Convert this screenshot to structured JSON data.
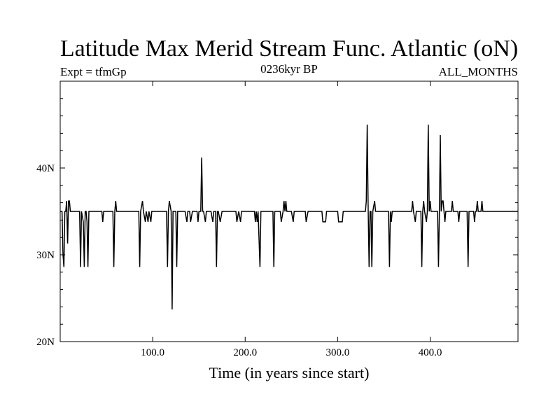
{
  "chart_data": {
    "type": "line",
    "title": "Latitude Max Merid Stream Func. Atlantic (oN)",
    "left_string": "Expt = tfmGp",
    "center_string": "0236kyr BP",
    "right_string": "ALL_MONTHS",
    "xlabel": "Time (in years since start)",
    "ylabel": "",
    "xlim": [
      0,
      495
    ],
    "ylim": [
      20,
      50
    ],
    "x_ticks": [
      {
        "value": 100,
        "label": "100.0"
      },
      {
        "value": 200,
        "label": "200.0"
      },
      {
        "value": 300,
        "label": "300.0"
      },
      {
        "value": 400,
        "label": "400.0"
      }
    ],
    "y_ticks": [
      {
        "value": 20,
        "label": "20N"
      },
      {
        "value": 30,
        "label": "30N"
      },
      {
        "value": 40,
        "label": "40N"
      }
    ],
    "baseline": 35,
    "series": [
      {
        "color": "#000000",
        "points": [
          [
            0,
            35
          ],
          [
            2,
            35
          ],
          [
            3,
            30
          ],
          [
            4,
            28.6
          ],
          [
            5,
            35
          ],
          [
            6,
            35
          ],
          [
            7,
            36.2
          ],
          [
            8,
            31.3
          ],
          [
            9,
            36.2
          ],
          [
            10,
            36.2
          ],
          [
            11,
            35
          ],
          [
            20,
            35
          ],
          [
            21,
            35
          ],
          [
            22,
            28.6
          ],
          [
            23,
            35
          ],
          [
            25,
            33.8
          ],
          [
            26,
            28.6
          ],
          [
            27,
            35
          ],
          [
            28,
            35
          ],
          [
            29,
            33.8
          ],
          [
            30,
            28.6
          ],
          [
            31,
            35
          ],
          [
            45,
            35
          ],
          [
            46,
            33.8
          ],
          [
            47,
            35
          ],
          [
            57,
            35
          ],
          [
            58,
            28.6
          ],
          [
            59,
            35
          ],
          [
            60,
            36.2
          ],
          [
            61,
            35
          ],
          [
            85,
            35
          ],
          [
            86,
            28.6
          ],
          [
            87,
            35
          ],
          [
            89,
            36.2
          ],
          [
            90,
            35
          ],
          [
            92,
            33.8
          ],
          [
            93,
            35
          ],
          [
            95,
            33.8
          ],
          [
            96,
            35
          ],
          [
            98,
            33.8
          ],
          [
            99,
            35
          ],
          [
            100,
            35
          ],
          [
            115,
            35
          ],
          [
            116,
            28.6
          ],
          [
            117,
            35
          ],
          [
            118,
            36.2
          ],
          [
            120,
            35
          ],
          [
            121,
            23.7
          ],
          [
            122,
            35
          ],
          [
            123,
            35
          ],
          [
            125,
            35
          ],
          [
            126,
            28.6
          ],
          [
            127,
            35
          ],
          [
            135,
            35
          ],
          [
            137,
            33.8
          ],
          [
            138,
            35
          ],
          [
            140,
            35
          ],
          [
            141,
            33.8
          ],
          [
            143,
            35
          ],
          [
            148,
            35
          ],
          [
            149,
            33.8
          ],
          [
            150,
            35
          ],
          [
            152,
            35
          ],
          [
            153,
            41.2
          ],
          [
            154,
            35
          ],
          [
            155,
            35
          ],
          [
            157,
            33.8
          ],
          [
            158,
            35
          ],
          [
            163,
            35
          ],
          [
            165,
            33.8
          ],
          [
            166,
            35
          ],
          [
            168,
            35
          ],
          [
            169,
            28.6
          ],
          [
            170,
            35
          ],
          [
            171,
            35
          ],
          [
            173,
            33.8
          ],
          [
            175,
            35
          ],
          [
            190,
            35
          ],
          [
            191,
            33.8
          ],
          [
            193,
            35
          ],
          [
            195,
            33.8
          ],
          [
            196,
            35
          ],
          [
            210,
            35
          ],
          [
            211,
            33.8
          ],
          [
            212,
            35
          ],
          [
            213,
            33.8
          ],
          [
            214,
            35
          ],
          [
            216,
            28.6
          ],
          [
            217,
            35
          ],
          [
            230,
            35
          ],
          [
            231,
            28.6
          ],
          [
            232,
            35
          ],
          [
            238,
            35
          ],
          [
            239,
            33.8
          ],
          [
            241,
            35
          ],
          [
            242,
            36.2
          ],
          [
            243,
            35
          ],
          [
            244,
            36.2
          ],
          [
            245,
            35
          ],
          [
            250,
            35
          ],
          [
            252,
            33.8
          ],
          [
            253,
            35
          ],
          [
            265,
            35
          ],
          [
            266,
            33.8
          ],
          [
            268,
            35
          ],
          [
            283,
            35
          ],
          [
            284,
            33.8
          ],
          [
            287,
            33.8
          ],
          [
            288,
            35
          ],
          [
            300,
            35
          ],
          [
            301,
            33.8
          ],
          [
            305,
            33.8
          ],
          [
            306,
            35
          ],
          [
            330,
            35
          ],
          [
            331,
            36.2
          ],
          [
            332,
            45
          ],
          [
            333,
            35
          ],
          [
            334,
            28.6
          ],
          [
            335,
            35
          ],
          [
            336,
            35
          ],
          [
            337,
            28.6
          ],
          [
            338,
            35
          ],
          [
            340,
            36.2
          ],
          [
            341,
            35
          ],
          [
            355,
            35
          ],
          [
            356,
            28.6
          ],
          [
            357,
            35
          ],
          [
            358,
            33.8
          ],
          [
            359,
            35
          ],
          [
            380,
            35
          ],
          [
            381,
            36.2
          ],
          [
            382,
            35
          ],
          [
            384,
            33.8
          ],
          [
            385,
            35
          ],
          [
            390,
            35
          ],
          [
            391,
            28.6
          ],
          [
            392,
            35
          ],
          [
            393,
            36.2
          ],
          [
            394,
            35
          ],
          [
            396,
            33.8
          ],
          [
            397,
            35
          ],
          [
            398,
            45
          ],
          [
            399,
            35
          ],
          [
            400,
            36.2
          ],
          [
            401,
            35
          ],
          [
            408,
            35
          ],
          [
            409,
            28.6
          ],
          [
            410,
            35
          ],
          [
            411,
            43.8
          ],
          [
            412,
            35
          ],
          [
            413,
            36.2
          ],
          [
            414,
            36.2
          ],
          [
            415,
            35
          ],
          [
            416,
            33.8
          ],
          [
            417,
            35
          ],
          [
            423,
            35
          ],
          [
            424,
            36.2
          ],
          [
            425,
            35
          ],
          [
            430,
            35
          ],
          [
            431,
            33.8
          ],
          [
            432,
            35
          ],
          [
            440,
            35
          ],
          [
            441,
            28.6
          ],
          [
            442,
            35
          ],
          [
            447,
            35
          ],
          [
            448,
            33.8
          ],
          [
            449,
            35
          ],
          [
            450,
            35
          ],
          [
            451,
            36.2
          ],
          [
            452,
            35
          ],
          [
            455,
            35
          ],
          [
            456,
            36.2
          ],
          [
            457,
            35
          ],
          [
            495,
            35
          ]
        ]
      }
    ]
  }
}
